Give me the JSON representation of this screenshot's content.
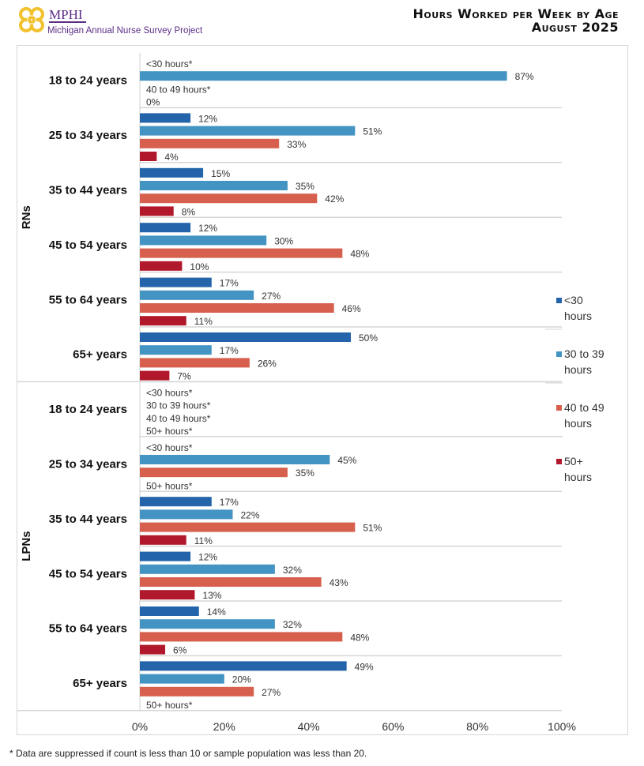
{
  "header": {
    "logo_title": "MPHI",
    "logo_subtitle": "Michigan Annual Nurse Survey Project",
    "title_line1": "Hours Worked per Week by Age",
    "title_line2": "August 2025"
  },
  "footnote": "* Data are suppressed if count is less than 10 or sample population was less than 20.",
  "chart_data": {
    "type": "bar",
    "orientation": "horizontal",
    "title": "Hours Worked per Week by Age",
    "subtitle": "August 2025",
    "xlabel": "",
    "ylabel": "",
    "xlim": [
      0,
      100
    ],
    "x_ticks": [
      "0%",
      "20%",
      "40%",
      "60%",
      "80%",
      "100%"
    ],
    "grid": "horizontal separators between categories",
    "legend_position": "right",
    "series": [
      {
        "name": "<30 hours",
        "color": "#2364aa"
      },
      {
        "name": "30 to 39 hours",
        "color": "#4393c3"
      },
      {
        "name": "40 to 49 hours",
        "color": "#d6604d"
      },
      {
        "name": "50+ hours",
        "color": "#b2182b"
      }
    ],
    "groups": [
      {
        "name": "RNs",
        "categories": [
          {
            "label": "18 to 24 years",
            "values": [
              null,
              87,
              null,
              0
            ],
            "notes": [
              "<30 hours*",
              null,
              "40 to 49 hours*",
              null
            ]
          },
          {
            "label": "25 to 34 years",
            "values": [
              12,
              51,
              33,
              4
            ],
            "notes": [
              null,
              null,
              null,
              null
            ]
          },
          {
            "label": "35 to 44 years",
            "values": [
              15,
              35,
              42,
              8
            ],
            "notes": [
              null,
              null,
              null,
              null
            ]
          },
          {
            "label": "45 to 54 years",
            "values": [
              12,
              30,
              48,
              10
            ],
            "notes": [
              null,
              null,
              null,
              null
            ]
          },
          {
            "label": "55 to 64 years",
            "values": [
              17,
              27,
              46,
              11
            ],
            "notes": [
              null,
              null,
              null,
              null
            ]
          },
          {
            "label": "65+ years",
            "values": [
              50,
              17,
              26,
              7
            ],
            "notes": [
              null,
              null,
              null,
              null
            ]
          }
        ]
      },
      {
        "name": "LPNs",
        "categories": [
          {
            "label": "18 to 24 years",
            "values": [
              null,
              null,
              null,
              null
            ],
            "notes": [
              "<30 hours*",
              "30 to 39 hours*",
              "40 to 49 hours*",
              "50+ hours*"
            ]
          },
          {
            "label": "25 to 34 years",
            "values": [
              null,
              45,
              35,
              null
            ],
            "notes": [
              "<30 hours*",
              null,
              null,
              "50+ hours*"
            ]
          },
          {
            "label": "35 to 44 years",
            "values": [
              17,
              22,
              51,
              11
            ],
            "notes": [
              null,
              null,
              null,
              null
            ]
          },
          {
            "label": "45 to 54 years",
            "values": [
              12,
              32,
              43,
              13
            ],
            "notes": [
              null,
              null,
              null,
              null
            ]
          },
          {
            "label": "55 to 64 years",
            "values": [
              14,
              32,
              48,
              6
            ],
            "notes": [
              null,
              null,
              null,
              null
            ]
          },
          {
            "label": "65+ years",
            "values": [
              49,
              20,
              27,
              null
            ],
            "notes": [
              null,
              null,
              null,
              "50+ hours*"
            ]
          }
        ]
      }
    ]
  }
}
